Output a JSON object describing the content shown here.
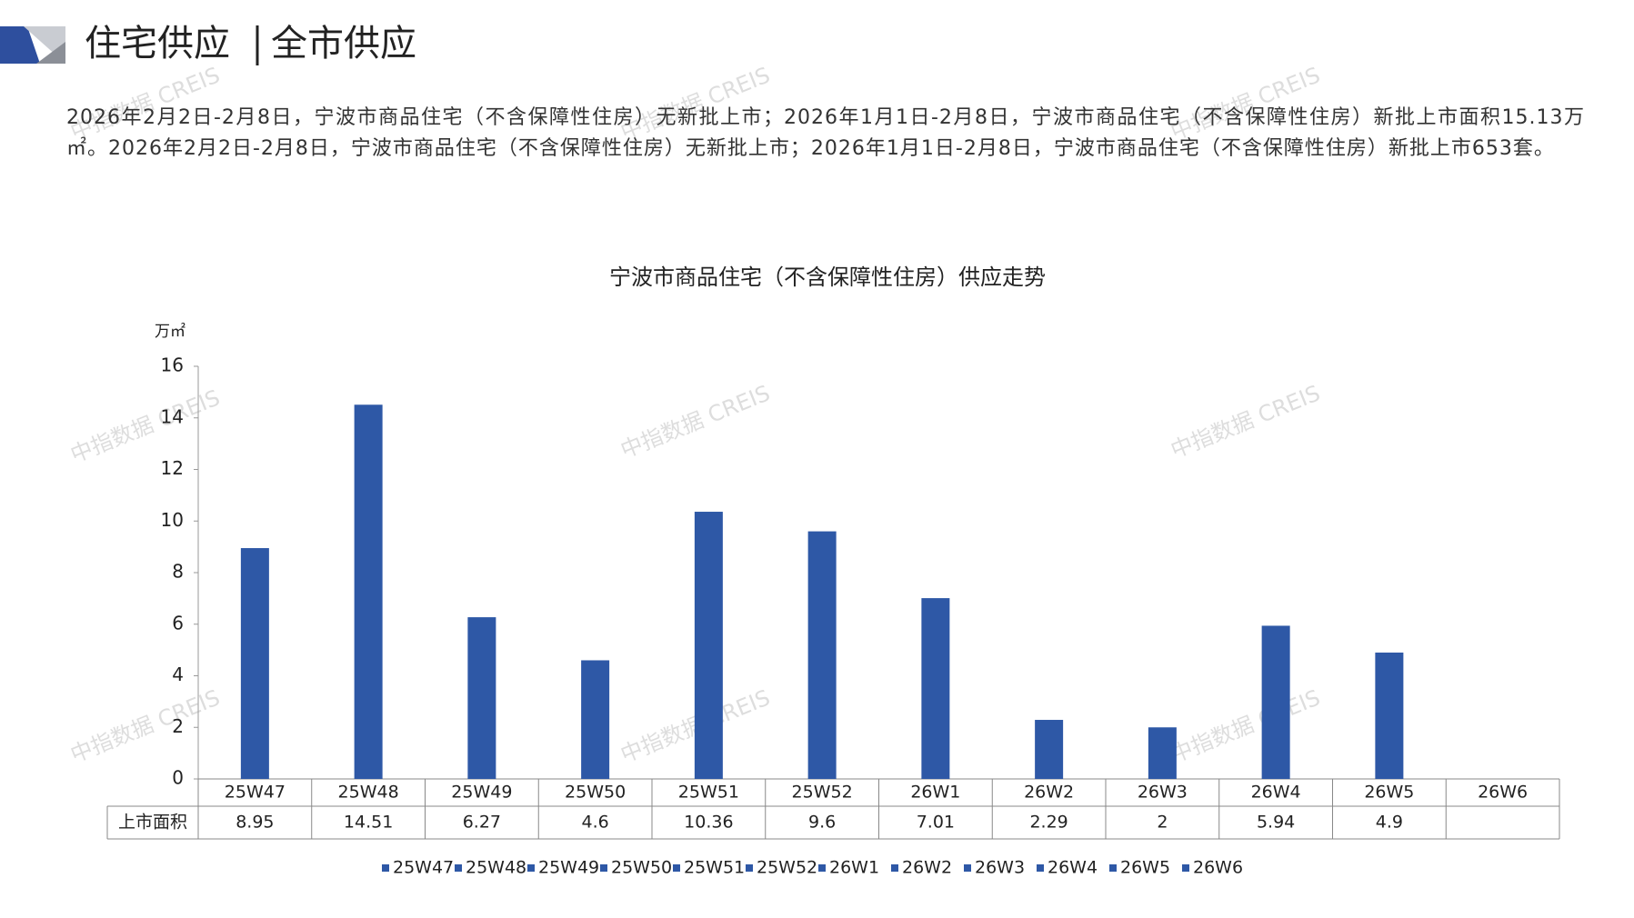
{
  "header": {
    "title_left": "住宅供应",
    "title_right": "全市供应"
  },
  "summary": "2026年2月2日-2月8日，宁波市商品住宅（不含保障性住房）无新批上市；2026年1月1日-2月8日，宁波市商品住宅（不含保障性住房）新批上市面积15.13万㎡。2026年2月2日-2月8日，宁波市商品住宅（不含保障性住房）无新批上市；2026年1月1日-2月8日，宁波市商品住宅（不含保障性住房）新批上市653套。",
  "watermark": "中指数据 CREIS",
  "chart_data": {
    "type": "bar",
    "title": "宁波市商品住宅（不含保障性住房）供应走势",
    "y_unit": "万㎡",
    "categories": [
      "25W47",
      "25W48",
      "25W49",
      "25W50",
      "25W51",
      "25W52",
      "26W1",
      "26W2",
      "26W3",
      "26W4",
      "26W5",
      "26W6"
    ],
    "series": [
      {
        "name": "上市面积",
        "color": "#2e58a6",
        "values": [
          8.95,
          14.51,
          6.27,
          4.6,
          10.36,
          9.6,
          7.01,
          2.29,
          2,
          5.94,
          4.9,
          null
        ]
      }
    ],
    "ylim": [
      0,
      16
    ],
    "yticks": [
      0,
      2,
      4,
      6,
      8,
      10,
      12,
      14,
      16
    ],
    "grid": false
  }
}
